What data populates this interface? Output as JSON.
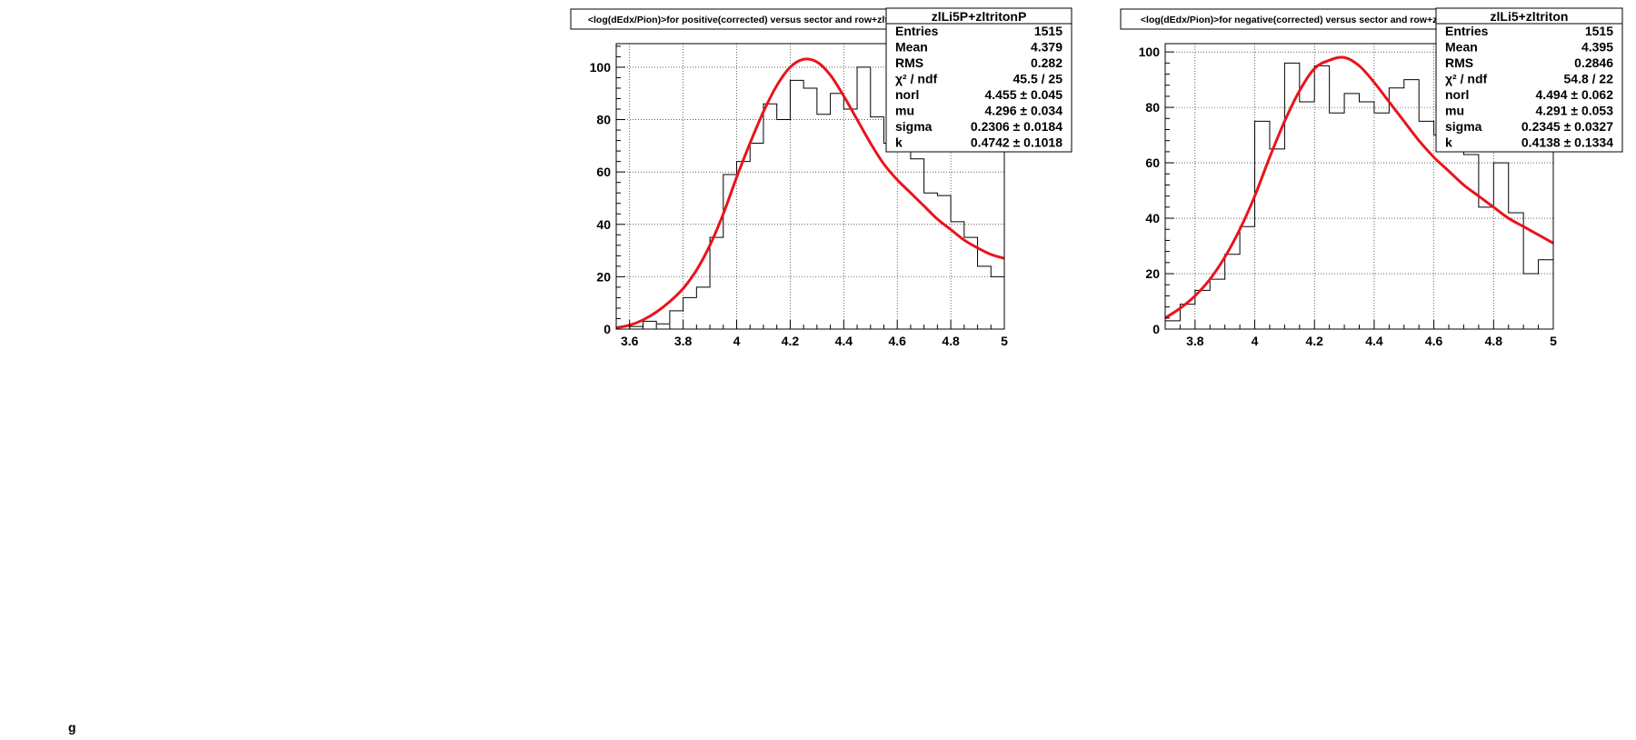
{
  "chart_data": [
    {
      "type": "histogram",
      "title": "<log(dEdx/Pion)>for positive(corrected) versus sector and row+zltritonP",
      "xlim": [
        3.55,
        5.0
      ],
      "ylim": [
        0,
        109
      ],
      "x_ticks": [
        3.6,
        3.8,
        4.0,
        4.2,
        4.4,
        4.6,
        4.8,
        5.0
      ],
      "x_tick_labels": [
        "3.6",
        "3.8",
        "4",
        "4.2",
        "4.4",
        "4.6",
        "4.8",
        "5"
      ],
      "y_ticks": [
        0,
        20,
        40,
        60,
        80,
        100
      ],
      "y_tick_labels": [
        "0",
        "20",
        "40",
        "60",
        "80",
        "100"
      ],
      "grid": true,
      "bin_edges": [
        3.55,
        3.6,
        3.65,
        3.7,
        3.75,
        3.8,
        3.85,
        3.9,
        3.95,
        4.0,
        4.05,
        4.1,
        4.15,
        4.2,
        4.25,
        4.3,
        4.35,
        4.4,
        4.45,
        4.5,
        4.55,
        4.6,
        4.65,
        4.7,
        4.75,
        4.8,
        4.85,
        4.9,
        4.95,
        5.0
      ],
      "counts": [
        0,
        1,
        3,
        2,
        7,
        12,
        16,
        35,
        59,
        64,
        71,
        86,
        80,
        95,
        92,
        82,
        90,
        84,
        100,
        81,
        71,
        70,
        65,
        52,
        51,
        41,
        35,
        24,
        20
      ],
      "fit_curve": {
        "name": "fit",
        "color": "#e8141c",
        "x": [
          3.55,
          3.6,
          3.65,
          3.7,
          3.75,
          3.8,
          3.85,
          3.9,
          3.95,
          4.0,
          4.05,
          4.1,
          4.15,
          4.2,
          4.25,
          4.3,
          4.35,
          4.4,
          4.45,
          4.5,
          4.55,
          4.6,
          4.65,
          4.7,
          4.75,
          4.8,
          4.85,
          4.9,
          4.95,
          5.0
        ],
        "y": [
          0.5,
          1.5,
          3.5,
          6.5,
          10.5,
          15.5,
          22.5,
          32,
          44,
          58,
          71,
          83,
          93,
          100,
          103,
          102,
          97,
          89,
          80,
          71,
          63,
          57,
          52,
          47,
          42,
          38,
          34,
          31,
          28.5,
          27
        ]
      },
      "stats": {
        "name": "zlLi5P+zltritonP",
        "rows": [
          {
            "label": "Entries",
            "value": "1515"
          },
          {
            "label": "Mean",
            "value": "4.379"
          },
          {
            "label": "RMS",
            "value": "0.282"
          },
          {
            "label": "χ² / ndf",
            "value": "45.5 / 25"
          },
          {
            "label": "norl",
            "value": "4.455 ± 0.045"
          },
          {
            "label": "mu",
            "value": "4.296 ± 0.034"
          },
          {
            "label": "sigma",
            "value": "0.2306 ± 0.0184"
          },
          {
            "label": "k",
            "value": "0.4742 ± 0.1018"
          }
        ]
      }
    },
    {
      "type": "histogram",
      "title": "<log(dEdx/Pion)>for negative(corrected) versus sector and row+zltriton",
      "xlim": [
        3.7,
        5.0
      ],
      "ylim": [
        0,
        103
      ],
      "x_ticks": [
        3.8,
        4.0,
        4.2,
        4.4,
        4.6,
        4.8,
        5.0
      ],
      "x_tick_labels": [
        "3.8",
        "4",
        "4.2",
        "4.4",
        "4.6",
        "4.8",
        "5"
      ],
      "y_ticks": [
        0,
        20,
        40,
        60,
        80,
        100
      ],
      "y_tick_labels": [
        "0",
        "20",
        "40",
        "60",
        "80",
        "100"
      ],
      "grid": true,
      "bin_edges": [
        3.7,
        3.75,
        3.8,
        3.85,
        3.9,
        3.95,
        4.0,
        4.05,
        4.1,
        4.15,
        4.2,
        4.25,
        4.3,
        4.35,
        4.4,
        4.45,
        4.5,
        4.55,
        4.6,
        4.65,
        4.7,
        4.75,
        4.8,
        4.85,
        4.9,
        4.95,
        5.0
      ],
      "counts": [
        3,
        9,
        14,
        18,
        27,
        37,
        75,
        65,
        96,
        82,
        95,
        78,
        85,
        82,
        78,
        87,
        90,
        75,
        70,
        66,
        63,
        44,
        60,
        42,
        20,
        25
      ],
      "fit_curve": {
        "name": "fit",
        "color": "#e8141c",
        "x": [
          3.7,
          3.75,
          3.8,
          3.85,
          3.9,
          3.95,
          4.0,
          4.05,
          4.1,
          4.15,
          4.2,
          4.25,
          4.3,
          4.35,
          4.4,
          4.45,
          4.5,
          4.55,
          4.6,
          4.65,
          4.7,
          4.75,
          4.8,
          4.85,
          4.9,
          4.95,
          5.0
        ],
        "y": [
          4,
          7.5,
          12,
          18,
          26,
          36,
          48,
          62,
          75,
          86,
          94,
          97,
          98,
          95,
          89,
          82,
          75,
          68,
          62,
          57,
          52,
          48,
          44,
          40,
          37,
          34,
          31
        ]
      },
      "stats": {
        "name": "zlLi5+zltriton",
        "rows": [
          {
            "label": "Entries",
            "value": "1515"
          },
          {
            "label": "Mean",
            "value": "4.395"
          },
          {
            "label": "RMS",
            "value": "0.2846"
          },
          {
            "label": "χ² / ndf",
            "value": "54.8 / 22"
          },
          {
            "label": "norl",
            "value": "4.494 ± 0.062"
          },
          {
            "label": "mu",
            "value": "4.291 ± 0.053"
          },
          {
            "label": "sigma",
            "value": "0.2345 ± 0.0327"
          },
          {
            "label": "k",
            "value": "0.4138 ± 0.1334"
          }
        ]
      }
    }
  ],
  "bottom_left_text": "g"
}
